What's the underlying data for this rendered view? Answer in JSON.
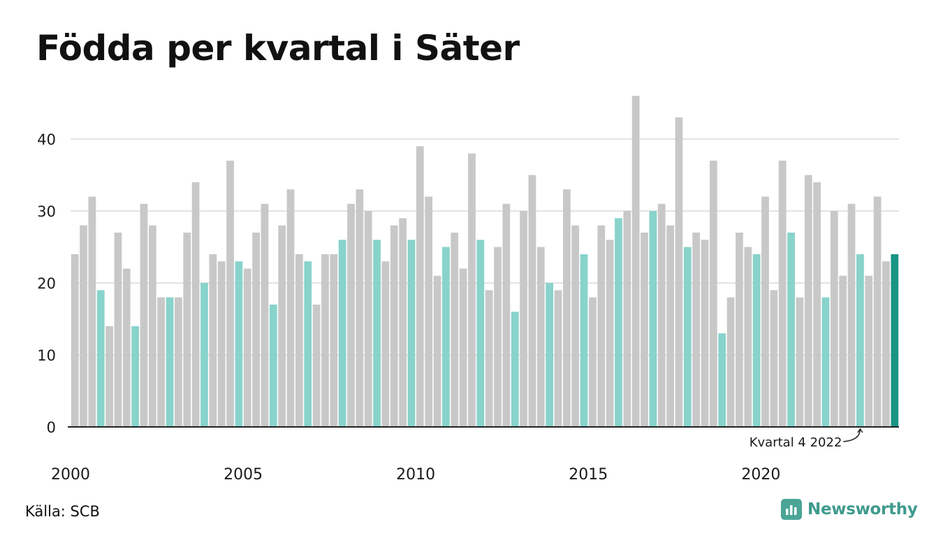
{
  "title": "Födda per kvartal i Säter",
  "source": "Källa: SCB",
  "brand": {
    "name": "Newsworthy",
    "icon": "newsworthy-logo-icon"
  },
  "colors": {
    "bar": "#c8c8c8",
    "highlight": "#88d3cb",
    "latest": "#1a9484",
    "grid": "#e3e3e3",
    "axis": "#222222",
    "brand": "#3f9a8c"
  },
  "chart_data": {
    "type": "bar",
    "title": "Födda per kvartal i Säter",
    "xlabel": "",
    "ylabel": "",
    "ylim": [
      0,
      46
    ],
    "yticks": [
      0,
      10,
      20,
      30,
      40
    ],
    "grid": true,
    "x_tick_labels": [
      "2000",
      "2005",
      "2010",
      "2015",
      "2020"
    ],
    "x_tick_years": [
      2000,
      2005,
      2010,
      2015,
      2020
    ],
    "start_year": 2000,
    "start_quarter": 1,
    "highlight_quarter": 4,
    "values": [
      24,
      28,
      32,
      19,
      14,
      27,
      22,
      14,
      31,
      28,
      18,
      18,
      18,
      27,
      34,
      20,
      24,
      23,
      37,
      23,
      22,
      27,
      31,
      17,
      28,
      33,
      24,
      23,
      17,
      24,
      24,
      26,
      31,
      33,
      30,
      26,
      23,
      28,
      29,
      26,
      39,
      32,
      21,
      25,
      27,
      22,
      38,
      26,
      19,
      25,
      31,
      16,
      30,
      35,
      25,
      20,
      19,
      33,
      28,
      24,
      18,
      28,
      26,
      29,
      30,
      46,
      27,
      30,
      31,
      28,
      43,
      25,
      27,
      26,
      37,
      13,
      18,
      27,
      25,
      24,
      32,
      19,
      37,
      27,
      18,
      35,
      34,
      18,
      30,
      21,
      31,
      24,
      21,
      32,
      23,
      24
    ],
    "annotation": {
      "text": "Kvartal 4 2022",
      "year": 2022,
      "quarter": 4
    }
  }
}
